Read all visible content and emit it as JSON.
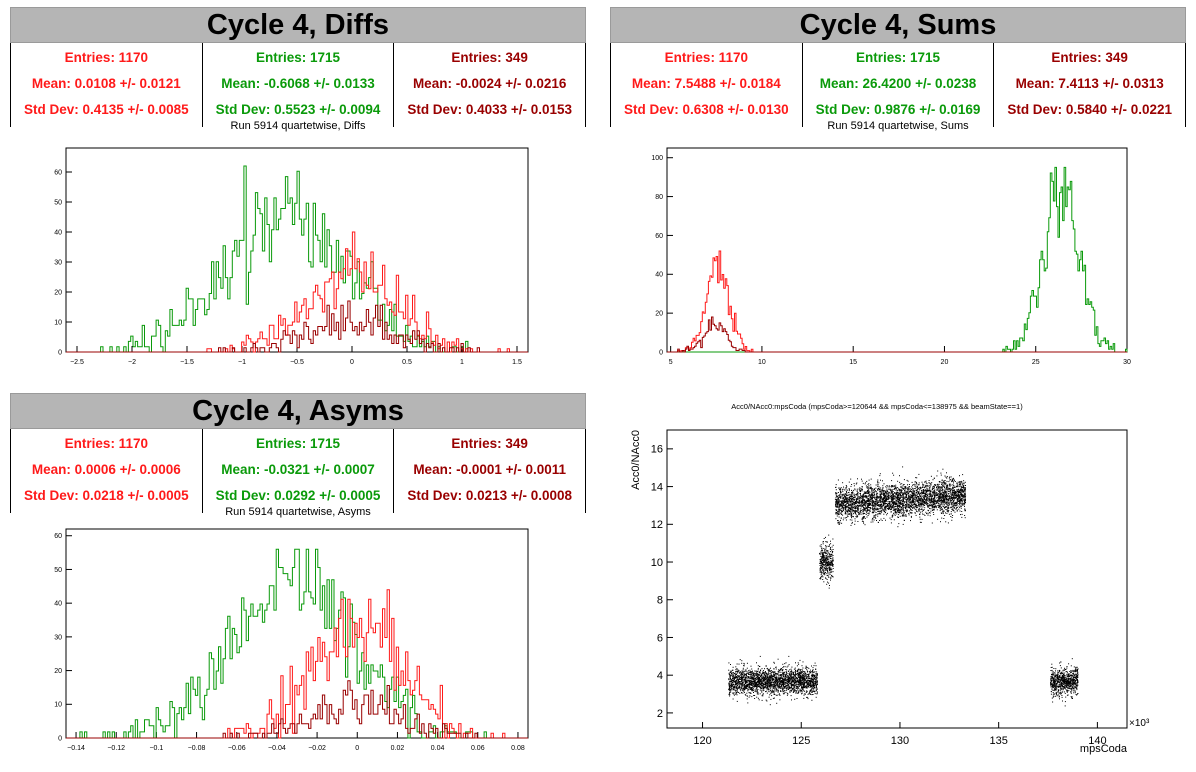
{
  "colors": {
    "red": "#ff1a1a",
    "green": "#0a9a0a",
    "dark": "#990000"
  },
  "panels": {
    "diffs": {
      "title": "Cycle 4, Diffs",
      "stats": [
        {
          "entries": "Entries: 1170",
          "mean": "Mean: 0.0108 +/- 0.0121",
          "std": "Std Dev: 0.4135 +/- 0.0085"
        },
        {
          "entries": "Entries: 1715",
          "mean": "Mean: -0.6068 +/- 0.0133",
          "std": "Std Dev: 0.5523 +/- 0.0094"
        },
        {
          "entries": "Entries: 349",
          "mean": "Mean: -0.0024 +/- 0.0216",
          "std": "Std Dev: 0.4033 +/- 0.0153"
        }
      ],
      "subtitle": "Run 5914 quartetwise, Diffs"
    },
    "sums": {
      "title": "Cycle 4, Sums",
      "stats": [
        {
          "entries": "Entries: 1170",
          "mean": "Mean: 7.5488 +/- 0.0184",
          "std": "Std Dev: 0.6308 +/- 0.0130"
        },
        {
          "entries": "Entries: 1715",
          "mean": "Mean: 26.4200 +/- 0.0238",
          "std": "Std Dev: 0.9876 +/- 0.0169"
        },
        {
          "entries": "Entries: 349",
          "mean": "Mean: 7.4113 +/- 0.0313",
          "std": "Std Dev: 0.5840 +/- 0.0221"
        }
      ],
      "subtitle": "Run 5914 quartetwise, Sums"
    },
    "asyms": {
      "title": "Cycle 4, Asyms",
      "stats": [
        {
          "entries": "Entries: 1170",
          "mean": "Mean: 0.0006 +/- 0.0006",
          "std": "Std Dev: 0.0218 +/- 0.0005"
        },
        {
          "entries": "Entries: 1715",
          "mean": "Mean: -0.0321 +/- 0.0007",
          "std": "Std Dev: 0.0292 +/- 0.0005"
        },
        {
          "entries": "Entries: 349",
          "mean": "Mean: -0.0001 +/- 0.0011",
          "std": "Std Dev: 0.0213 +/- 0.0008"
        }
      ],
      "subtitle": "Run 5914 quartetwise, Asyms"
    }
  },
  "chart_data": [
    {
      "id": "diffs",
      "type": "histogram",
      "xlim": [
        -2.6,
        1.6
      ],
      "ylim": [
        0,
        68
      ],
      "xticks": [
        -2.5,
        -2,
        -1.5,
        -1,
        -0.5,
        0,
        0.5,
        1,
        1.5
      ],
      "yticks": [
        0,
        10,
        20,
        30,
        40,
        50,
        60
      ],
      "series": [
        {
          "color": "green",
          "entries": 1715,
          "mean": -0.6068,
          "std": 0.5523
        },
        {
          "color": "red",
          "entries": 1170,
          "mean": 0.0108,
          "std": 0.4135
        },
        {
          "color": "dark",
          "entries": 349,
          "mean": -0.0024,
          "std": 0.4033
        }
      ],
      "bins": 200,
      "peaks": [
        62,
        40,
        17
      ]
    },
    {
      "id": "sums",
      "type": "histogram",
      "xlim": [
        4.8,
        30
      ],
      "ylim": [
        0,
        105
      ],
      "xticks": [
        5,
        10,
        15,
        20,
        25,
        30
      ],
      "yticks": [
        0,
        20,
        40,
        60,
        80,
        100
      ],
      "series": [
        {
          "color": "green",
          "entries": 1715,
          "mean": 26.42,
          "std": 0.9876
        },
        {
          "color": "red",
          "entries": 1170,
          "mean": 7.5488,
          "std": 0.6308
        },
        {
          "color": "dark",
          "entries": 349,
          "mean": 7.4113,
          "std": 0.584
        }
      ],
      "bins": 300,
      "peaks": [
        95,
        52,
        18
      ]
    },
    {
      "id": "asyms",
      "type": "histogram",
      "xlim": [
        -0.145,
        0.085
      ],
      "ylim": [
        0,
        62
      ],
      "xticks": [
        -0.14,
        -0.12,
        -0.1,
        -0.08,
        -0.06,
        -0.04,
        -0.02,
        0,
        0.02,
        0.04,
        0.06,
        0.08
      ],
      "yticks": [
        0,
        10,
        20,
        30,
        40,
        50,
        60
      ],
      "series": [
        {
          "color": "green",
          "entries": 1715,
          "mean": -0.0321,
          "std": 0.0292
        },
        {
          "color": "red",
          "entries": 1170,
          "mean": 0.0006,
          "std": 0.0218
        },
        {
          "color": "dark",
          "entries": 349,
          "mean": -0.0001,
          "std": 0.0213
        }
      ],
      "bins": 200,
      "peaks": [
        56,
        44,
        17
      ]
    },
    {
      "id": "scatter",
      "type": "scatter",
      "title": "Acc0/NAcc0:mpsCoda (mpsCoda>=120644 && mpsCoda<=138975 && beamState==1)",
      "xlabel": "mpsCoda",
      "ylabel": "Acc0/NAcc0",
      "xscale_label": "×10³",
      "xlim": [
        118.2,
        141.5
      ],
      "ylim": [
        1.2,
        17
      ],
      "xticks": [
        120,
        125,
        130,
        135,
        140
      ],
      "yticks": [
        2,
        4,
        6,
        8,
        10,
        12,
        14,
        16
      ],
      "clusters": [
        {
          "x": [
            121.3,
            125.8
          ],
          "y_mean": 3.7,
          "y_spread": 0.35,
          "slope": 0
        },
        {
          "x": [
            125.9,
            126.6
          ],
          "y_mean": 10.0,
          "y_spread": 0.45,
          "slope": 0
        },
        {
          "x": [
            126.7,
            133.3
          ],
          "y_mean": 13.1,
          "y_spread": 0.45,
          "slope": 0.07
        },
        {
          "x": [
            137.6,
            139.0
          ],
          "y_mean": 3.7,
          "y_spread": 0.35,
          "slope": 0
        }
      ]
    }
  ]
}
